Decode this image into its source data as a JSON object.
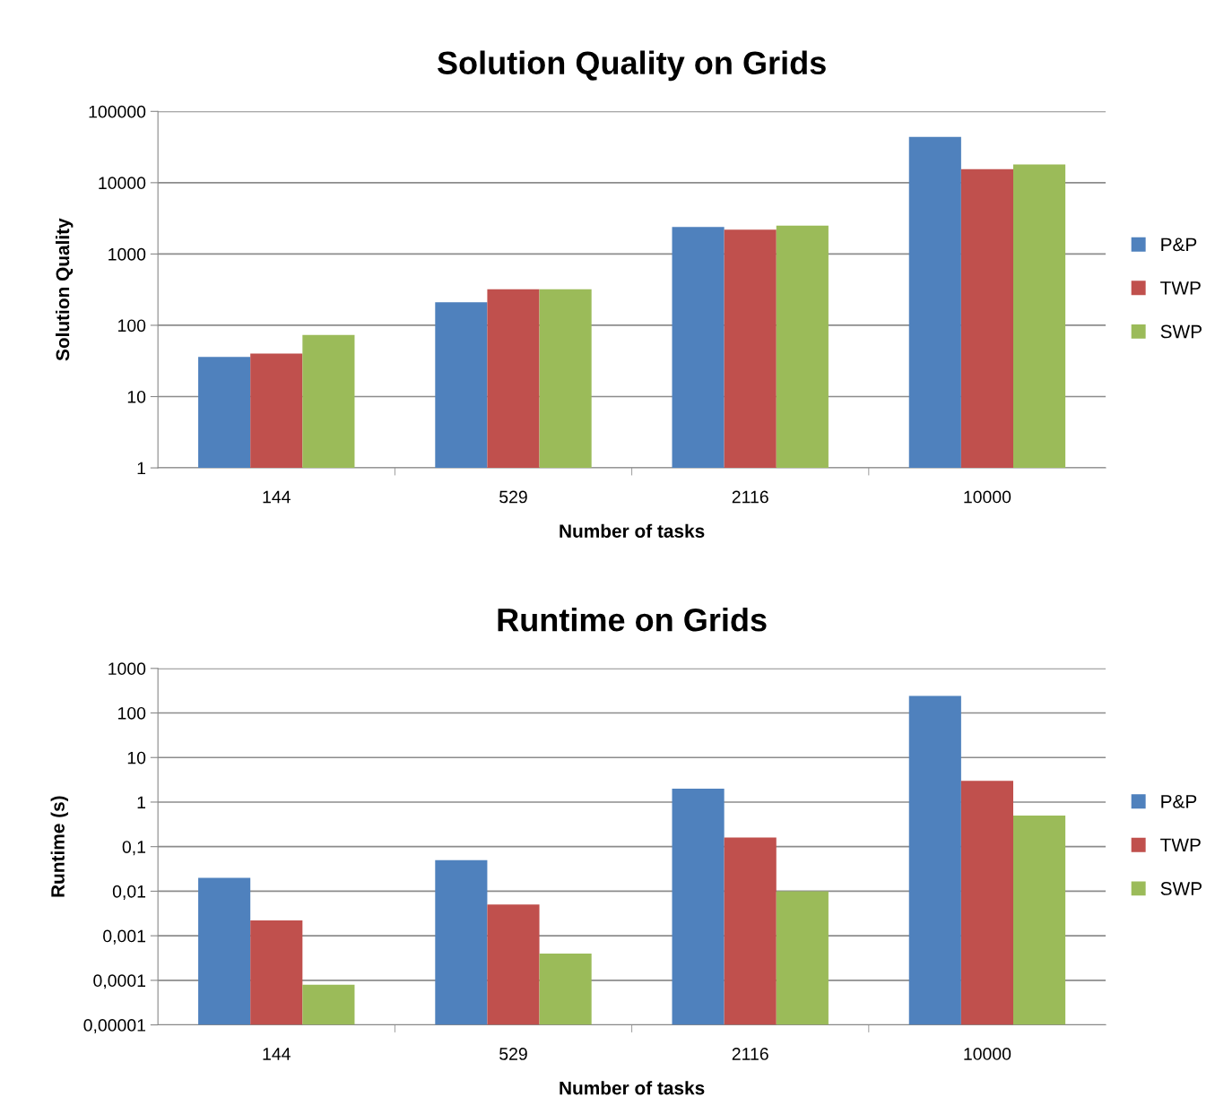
{
  "chart_data": [
    {
      "type": "bar",
      "title": "Solution Quality on Grids",
      "xlabel": "Number of tasks",
      "ylabel": "Solution Quality",
      "categories": [
        "144",
        "529",
        "2116",
        "10000"
      ],
      "series": [
        {
          "name": "P&P",
          "color": "#4f81bd",
          "values": [
            36,
            210,
            2400,
            44000
          ]
        },
        {
          "name": "TWP",
          "color": "#c0504d",
          "values": [
            40,
            320,
            2200,
            15500
          ]
        },
        {
          "name": "SWP",
          "color": "#9bbb59",
          "values": [
            73,
            320,
            2500,
            18000
          ]
        }
      ],
      "log": true,
      "ylim": [
        1,
        100000
      ],
      "yticks": [
        1,
        10,
        100,
        1000,
        10000,
        100000
      ],
      "grid": "y",
      "legend": "right"
    },
    {
      "type": "bar",
      "title": "Runtime on Grids",
      "xlabel": "Number of tasks",
      "ylabel": "Runtime (s)",
      "categories": [
        "144",
        "529",
        "2116",
        "10000"
      ],
      "series": [
        {
          "name": "P&P",
          "color": "#4f81bd",
          "values": [
            0.02,
            0.05,
            2,
            240
          ]
        },
        {
          "name": "TWP",
          "color": "#c0504d",
          "values": [
            0.0022,
            0.005,
            0.16,
            3
          ]
        },
        {
          "name": "SWP",
          "color": "#9bbb59",
          "values": [
            8e-05,
            0.0004,
            0.01,
            0.5
          ]
        }
      ],
      "log": true,
      "ylim": [
        1e-05,
        1000
      ],
      "yticks": [
        {
          "value": 1e-05,
          "label": "0,00001"
        },
        {
          "value": 0.0001,
          "label": "0,0001"
        },
        {
          "value": 0.001,
          "label": "0,001"
        },
        {
          "value": 0.01,
          "label": "0,01"
        },
        {
          "value": 0.1,
          "label": "0,1"
        },
        1,
        10,
        100,
        1000
      ],
      "grid": "y",
      "legend": "right"
    }
  ]
}
